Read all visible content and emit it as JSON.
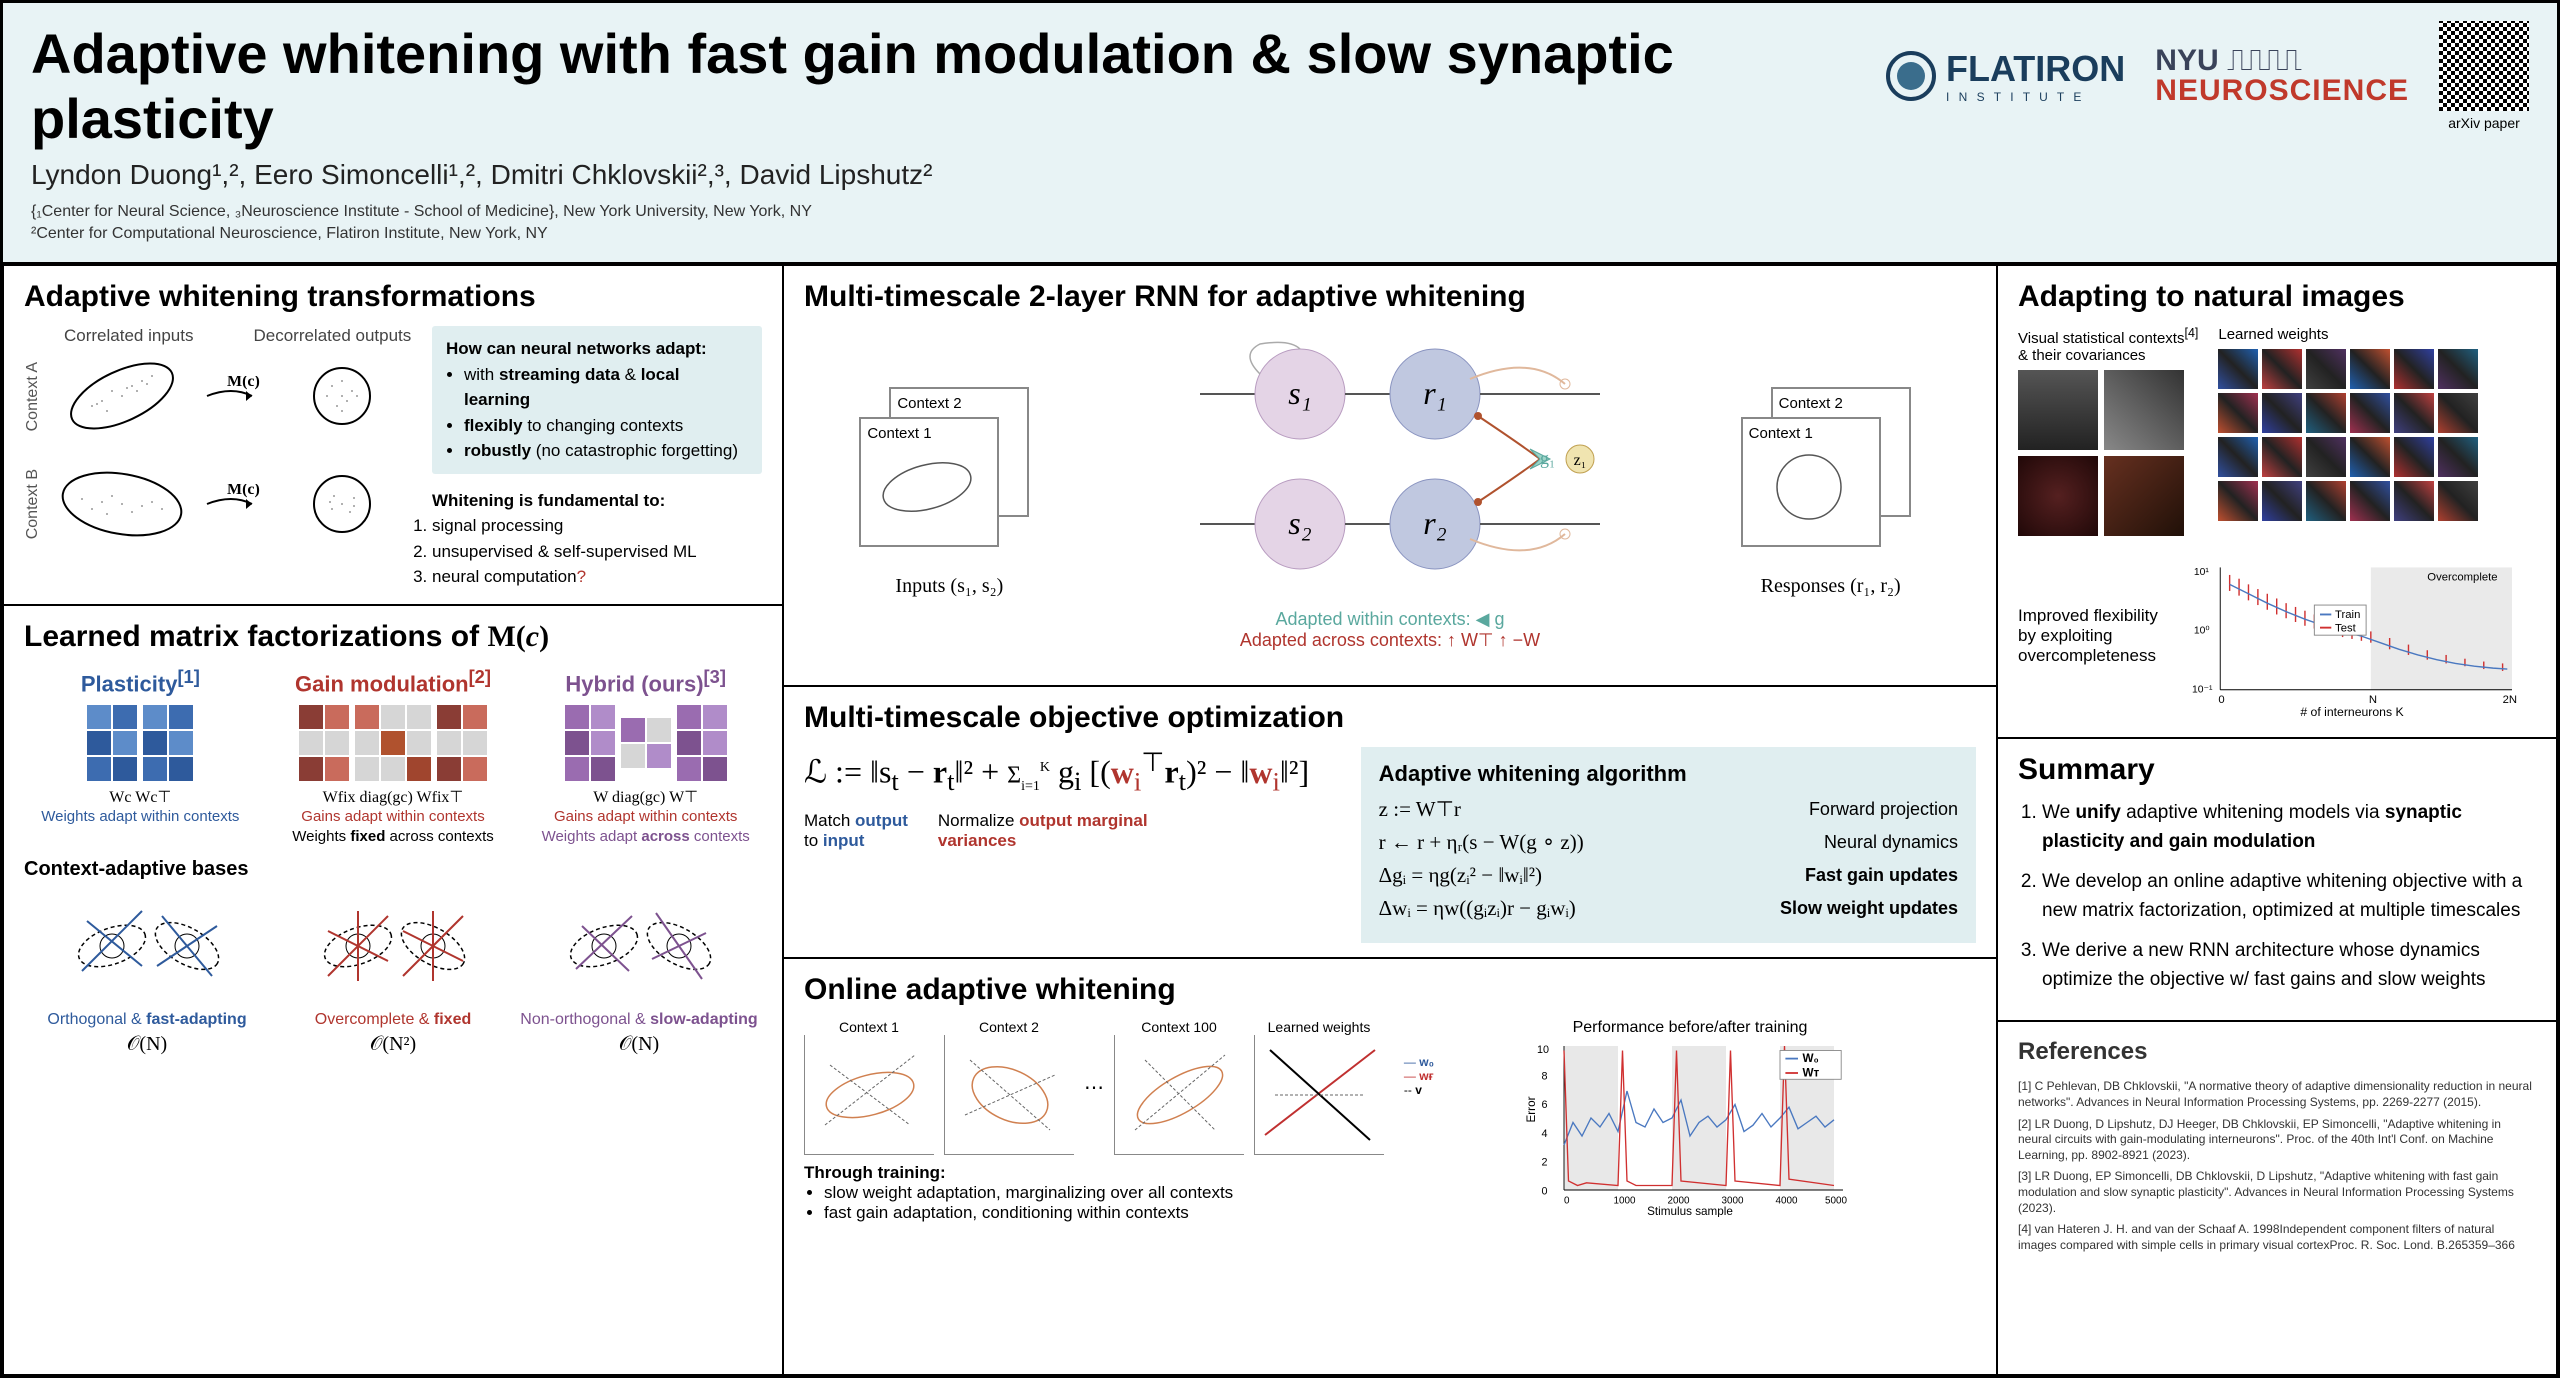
{
  "header": {
    "title": "Adaptive whitening with fast gain modulation & slow synaptic plasticity",
    "authors": "Lyndon Duong¹,², Eero Simoncelli¹,², Dmitri Chklovskii²,³, David Lipshutz²",
    "affil1": "{₁Center for Neural Science, ₃Neuroscience Institute - School of Medicine}, New York University, New York, NY",
    "affil2": "²Center for Computational Neuroscience, Flatiron Institute, New York, NY",
    "flatiron": "FLATIRON",
    "flatiron_sub": "I N S T I T U T E",
    "nyu_top": "NYU",
    "nyu_bot": "NEUROSCIENCE",
    "qr_label": "arXiv paper"
  },
  "p1": {
    "title": "Adaptive whitening transformations",
    "lbl_corr": "Correlated inputs",
    "lbl_decorr": "Decorrelated outputs",
    "ctxA": "Context A",
    "ctxB": "Context B",
    "Mc": "M(c)",
    "q1_title": "How can neural networks adapt:",
    "q1_1": "with streaming data & local learning",
    "q1_2": "flexibly to changing contexts",
    "q1_3": "robustly (no catastrophic forgetting)",
    "q2_title": "Whitening is fundamental to:",
    "q2_1": "signal processing",
    "q2_2": "unsupervised & self-supervised ML",
    "q2_3": "neural computation?"
  },
  "p2": {
    "title": "Learned matrix factorizations of  M(c)",
    "plast": "Plasticity[1]",
    "gain": "Gain modulation[2]",
    "hybrid": "Hybrid (ours)[3]",
    "plast_mat": "Wc    Wc⊤",
    "gain_mat": "Wfix   diag(gc)   Wfix⊤",
    "hybrid_mat": "W   diag(gc)   W⊤",
    "plast_desc": "Weights adapt within contexts",
    "gain_desc1": "Gains adapt within contexts",
    "gain_desc2": "Weights fixed across contexts",
    "hybrid_desc1": "Gains adapt within contexts",
    "hybrid_desc2": "Weights adapt across contexts",
    "bases_title": "Context-adaptive bases",
    "b1_desc": "Orthogonal & fast-adapting",
    "b1_O": "𝒪(N)",
    "b2_desc": "Overcomplete & fixed",
    "b2_O": "𝒪(N²)",
    "b3_desc": "Non-orthogonal & slow-adapting",
    "b3_O": "𝒪(N)",
    "colors": {
      "plast": [
        "#5d8cc9",
        "#3d6cb0",
        "#2e5a9c",
        "#5d8cc9",
        "#3d6cb0",
        "#2e5a9c"
      ],
      "gain_fix": [
        "#8a3d35",
        "#c96b5c",
        "#d6d6d6",
        "#d6d6d6",
        "#8a3d35",
        "#c96b5c"
      ],
      "gain_diag": [
        "#c96b5c",
        "#d6d6d6",
        "#d6d6d6",
        "#d6d6d6",
        "#b0522e",
        "#d6d6d6",
        "#d6d6d6",
        "#d6d6d6",
        "#a0452e"
      ],
      "hybrid_w": [
        "#9a6cb0",
        "#b08cc9",
        "#7d528f",
        "#b08cc9",
        "#9a6cb0",
        "#7d528f"
      ],
      "hybrid_diag": [
        "#9a6cb0",
        "#d6d6d6",
        "#d6d6d6",
        "#b08cc9"
      ]
    }
  },
  "p3": {
    "title": "Multi-timescale 2-layer RNN for adaptive whitening",
    "ctx1": "Context 1",
    "ctx2": "Context 2",
    "s1": "s₁",
    "s2": "s₂",
    "r1": "r₁",
    "r2": "r₂",
    "g1": "g₁",
    "z1": "z₁",
    "inputs": "Inputs  (s₁, s₂)",
    "responses": "Responses  (r₁, r₂)",
    "leg1": "Adapted within contexts: ◀ g",
    "leg2": "Adapted across contexts: ↑ W⊤  ↑ −W",
    "colors": {
      "s": "#d4c0d6",
      "r": "#a8b0d0",
      "g": "#9dd4c8",
      "edge": "#b0522e"
    }
  },
  "p4": {
    "title": "Multi-timescale objective optimization",
    "eq": "ℒ := ‖sₜ − rₜ‖² + Σᵢ₌₁ᴷ gᵢ [(wᵢ⊤rₜ)² − ‖wᵢ‖²]",
    "desc1": "Match output to input",
    "desc2": "Normalize output marginal variances",
    "algo_title": "Adaptive whitening algorithm",
    "a1_eq": "z := W⊤r",
    "a1_lbl": "Forward projection",
    "a2_eq": "r ← r + ηᵣ(s − W(g ∘ z))",
    "a2_lbl": "Neural dynamics",
    "a3_eq": "Δgᵢ = ηg(zᵢ² − ‖wᵢ‖²)",
    "a3_lbl": "Fast gain updates",
    "a4_eq": "Δwᵢ = ηw((gᵢzᵢ)r − gᵢwᵢ)",
    "a4_lbl": "Slow weight updates"
  },
  "p5": {
    "title": "Online adaptive whitening",
    "c1": "Context 1",
    "c2": "Context 2",
    "c100": "Context 100",
    "lw": "Learned weights",
    "perf_title": "Performance before/after training",
    "w0": "W₀",
    "wt": "Wᴛ",
    "notes_title": "Through training:",
    "n1": "slow weight adaptation, marginalizing over all contexts",
    "n2": "fast gain adaptation, conditioning within contexts",
    "xticks": [
      0,
      1000,
      2000,
      3000,
      4000,
      5000
    ],
    "yticks": [
      0,
      2,
      4,
      6,
      8,
      10
    ],
    "xlabel": "Stimulus sample",
    "ylabel": "Error"
  },
  "p6": {
    "title": "Adapting to natural images",
    "lbl1": "Visual statistical contexts[4] & their covariances",
    "lbl2": "Learned weights",
    "flex_desc": "Improved flexibility by exploiting overcompleteness",
    "xlabel": "# of interneurons K",
    "ylabel": "Error",
    "xticks": [
      "0",
      "N",
      "2N"
    ],
    "yticks": [
      "10⁻¹",
      "10⁰",
      "10¹"
    ],
    "overcomplete": "Overcomplete",
    "train": "Train",
    "test": "Test"
  },
  "p7": {
    "title": "Summary",
    "s1a": "We ",
    "s1b": "unify",
    "s1c": " adaptive whitening models via ",
    "s1d": "synaptic plasticity and gain modulation",
    "s2": "We develop an online adaptive whitening objective with a new matrix factorization, optimized at multiple timescales",
    "s3": "We derive a new RNN architecture whose dynamics optimize the objective w/ fast gains and slow weights"
  },
  "p8": {
    "title": "References",
    "r1": "[1] C Pehlevan, DB Chklovskii, \"A normative theory of adaptive dimensionality reduction in neural networks\". Advances in Neural Information Processing Systems, pp. 2269-2277 (2015).",
    "r2": "[2] LR Duong, D Lipshutz, DJ Heeger, DB Chklovskii, EP Simoncelli, \"Adaptive whitening in neural circuits with gain-modulating interneurons\". Proc. of the 40th Int'l Conf. on Machine Learning, pp. 8902-8921 (2023).",
    "r3": "[3] LR Duong, EP Simoncelli, DB Chklovskii, D Lipshutz, \"Adaptive whitening with fast gain modulation and slow synaptic plasticity\". Advances in Neural Information Processing Systems (2023).",
    "r4": "[4] van Hateren J. H. and van der Schaaf A. 1998Independent component filters of natural images compared with simple cells in primary visual cortexProc. R. Soc. Lond. B.265359–366"
  }
}
